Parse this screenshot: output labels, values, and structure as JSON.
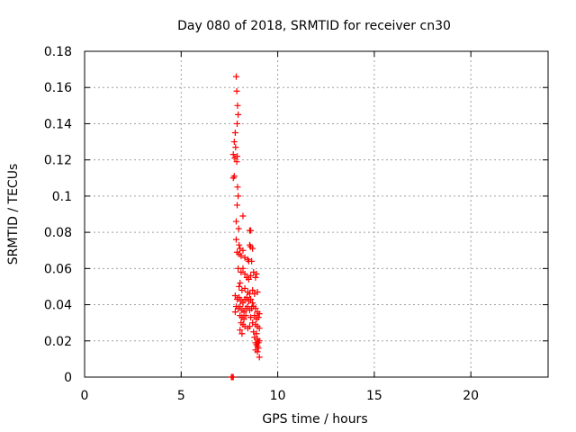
{
  "chart_data": {
    "type": "scatter",
    "title": "Day 080 of 2018, SRMTID for receiver cn30",
    "xlabel": "GPS time / hours",
    "ylabel": "SRMTID / TECUs",
    "xlim": [
      0,
      24
    ],
    "ylim": [
      0,
      0.18
    ],
    "xticks": [
      0,
      5,
      10,
      15,
      20
    ],
    "xtick_labels": [
      "0",
      "5",
      "10",
      "15",
      "20"
    ],
    "yticks": [
      0,
      0.02,
      0.04,
      0.06,
      0.08,
      0.1,
      0.12,
      0.14,
      0.16,
      0.18
    ],
    "ytick_labels": [
      "0",
      "0.02",
      "0.04",
      "0.06",
      "0.08",
      "0.1",
      "0.12",
      "0.14",
      "0.16",
      "0.18"
    ],
    "grid": true,
    "marker": "+",
    "color": "#ff0000",
    "series": [
      {
        "name": "SRMTID",
        "points": [
          [
            7.6,
            0.0
          ],
          [
            7.65,
            0.0
          ],
          [
            7.7,
            0.0
          ],
          [
            7.85,
            0.166
          ],
          [
            7.88,
            0.158
          ],
          [
            7.92,
            0.15
          ],
          [
            7.95,
            0.145
          ],
          [
            7.9,
            0.14
          ],
          [
            7.8,
            0.135
          ],
          [
            7.75,
            0.13
          ],
          [
            7.82,
            0.127
          ],
          [
            7.7,
            0.123
          ],
          [
            7.78,
            0.121
          ],
          [
            7.88,
            0.119
          ],
          [
            7.9,
            0.122
          ],
          [
            7.7,
            0.11
          ],
          [
            7.75,
            0.111
          ],
          [
            7.92,
            0.105
          ],
          [
            7.95,
            0.1
          ],
          [
            7.9,
            0.095
          ],
          [
            7.85,
            0.086
          ],
          [
            7.98,
            0.082
          ],
          [
            8.2,
            0.089
          ],
          [
            8.55,
            0.081
          ],
          [
            8.6,
            0.081
          ],
          [
            7.85,
            0.076
          ],
          [
            8.0,
            0.073
          ],
          [
            8.05,
            0.071
          ],
          [
            7.9,
            0.069
          ],
          [
            8.0,
            0.068
          ],
          [
            8.1,
            0.067
          ],
          [
            8.2,
            0.07
          ],
          [
            8.3,
            0.066
          ],
          [
            8.45,
            0.065
          ],
          [
            8.55,
            0.073
          ],
          [
            8.6,
            0.072
          ],
          [
            8.7,
            0.071
          ],
          [
            8.5,
            0.064
          ],
          [
            8.65,
            0.064
          ],
          [
            7.95,
            0.06
          ],
          [
            8.1,
            0.058
          ],
          [
            8.2,
            0.06
          ],
          [
            8.3,
            0.057
          ],
          [
            8.4,
            0.055
          ],
          [
            8.5,
            0.054
          ],
          [
            8.6,
            0.056
          ],
          [
            8.75,
            0.058
          ],
          [
            8.85,
            0.055
          ],
          [
            8.9,
            0.057
          ],
          [
            8.05,
            0.052
          ],
          [
            8.0,
            0.05
          ],
          [
            8.15,
            0.048
          ],
          [
            8.3,
            0.049
          ],
          [
            8.45,
            0.047
          ],
          [
            8.55,
            0.046
          ],
          [
            8.7,
            0.048
          ],
          [
            8.8,
            0.046
          ],
          [
            8.95,
            0.047
          ],
          [
            7.8,
            0.045
          ],
          [
            7.9,
            0.043
          ],
          [
            8.0,
            0.044
          ],
          [
            8.1,
            0.042
          ],
          [
            8.2,
            0.041
          ],
          [
            8.3,
            0.043
          ],
          [
            8.4,
            0.044
          ],
          [
            8.5,
            0.042
          ],
          [
            8.6,
            0.043
          ],
          [
            8.7,
            0.041
          ],
          [
            7.85,
            0.039
          ],
          [
            7.95,
            0.038
          ],
          [
            8.05,
            0.039
          ],
          [
            8.15,
            0.037
          ],
          [
            8.25,
            0.036
          ],
          [
            8.35,
            0.038
          ],
          [
            8.45,
            0.039
          ],
          [
            8.55,
            0.037
          ],
          [
            8.65,
            0.038
          ],
          [
            8.75,
            0.039
          ],
          [
            8.85,
            0.038
          ],
          [
            8.95,
            0.036
          ],
          [
            9.05,
            0.035
          ],
          [
            7.8,
            0.036
          ],
          [
            8.05,
            0.034
          ],
          [
            8.15,
            0.033
          ],
          [
            8.25,
            0.032
          ],
          [
            8.35,
            0.034
          ],
          [
            8.6,
            0.033
          ],
          [
            8.8,
            0.034
          ],
          [
            8.9,
            0.032
          ],
          [
            9.0,
            0.033
          ],
          [
            8.1,
            0.03
          ],
          [
            8.2,
            0.029
          ],
          [
            8.3,
            0.028
          ],
          [
            8.45,
            0.027
          ],
          [
            8.55,
            0.028
          ],
          [
            8.7,
            0.03
          ],
          [
            8.85,
            0.029
          ],
          [
            8.95,
            0.028
          ],
          [
            9.05,
            0.027
          ],
          [
            8.05,
            0.026
          ],
          [
            8.15,
            0.024
          ],
          [
            8.75,
            0.025
          ],
          [
            8.9,
            0.024
          ],
          [
            8.8,
            0.022
          ],
          [
            8.95,
            0.021
          ],
          [
            8.85,
            0.019
          ],
          [
            8.9,
            0.018
          ],
          [
            8.95,
            0.017
          ],
          [
            9.0,
            0.019
          ],
          [
            9.05,
            0.02
          ],
          [
            9.0,
            0.016
          ],
          [
            8.85,
            0.015
          ],
          [
            8.95,
            0.014
          ],
          [
            9.05,
            0.011
          ]
        ]
      }
    ]
  }
}
